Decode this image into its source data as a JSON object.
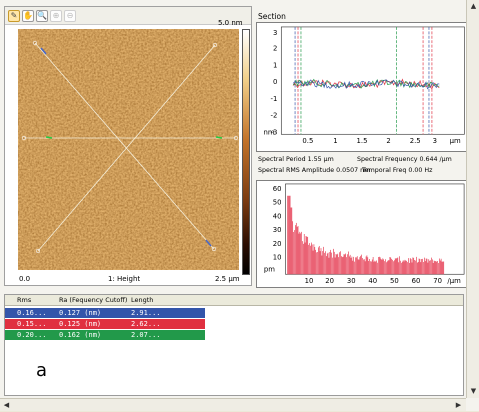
{
  "toolbar": {
    "tools": [
      {
        "name": "pencil-icon",
        "glyph": "✎"
      },
      {
        "name": "hand-icon",
        "glyph": "✋"
      },
      {
        "name": "zoom-icon",
        "glyph": "🔍"
      },
      {
        "name": "zoom-in-icon",
        "glyph": "⊕"
      },
      {
        "name": "zoom-out-icon",
        "glyph": "⊖"
      }
    ]
  },
  "image": {
    "scale_top": "5.0 nm",
    "x_start": "0.0",
    "channel": "1: Height",
    "x_end": "2.5 µm"
  },
  "section": {
    "title": "Section",
    "y_ticks": [
      "3",
      "2",
      "1",
      "0",
      "-1",
      "-2",
      "-3"
    ],
    "y_unit": "nm",
    "x_ticks": [
      "0.5",
      "1",
      "1.5",
      "2",
      "2.5",
      "3"
    ],
    "x_unit": "µm"
  },
  "spectral": {
    "period": "Spectral Period 1.55 µm",
    "frequency": "Spectral Frequency 0.644 /µm",
    "rms_amplitude": "Spectral RMS Amplitude 0.0507 nm",
    "temporal_freq": "Temporal Freq 0.00 Hz"
  },
  "spectrum": {
    "y_ticks": [
      "60",
      "50",
      "40",
      "30",
      "20",
      "10"
    ],
    "y_unit": "pm",
    "x_ticks": [
      "10",
      "20",
      "30",
      "40",
      "50",
      "60",
      "70"
    ],
    "x_unit": "/µm"
  },
  "table": {
    "headers": [
      "Rms",
      "Ra (Fequency Cutoff)",
      "Length"
    ],
    "rows": [
      {
        "rms": "0.16...",
        "ra": "0.127 (nm)",
        "length": "2.91...",
        "color": "#3355aa"
      },
      {
        "rms": "0.15...",
        "ra": "0.125 (nm)",
        "length": "2.62...",
        "color": "#e03040"
      },
      {
        "rms": "0.20...",
        "ra": "0.162 (nm)",
        "length": "2.07...",
        "color": "#22994a"
      }
    ]
  },
  "figure_label": "a",
  "colors": {
    "blue": "#3355aa",
    "red": "#e03040",
    "green": "#22994a",
    "spectrum": "#e2203a"
  }
}
